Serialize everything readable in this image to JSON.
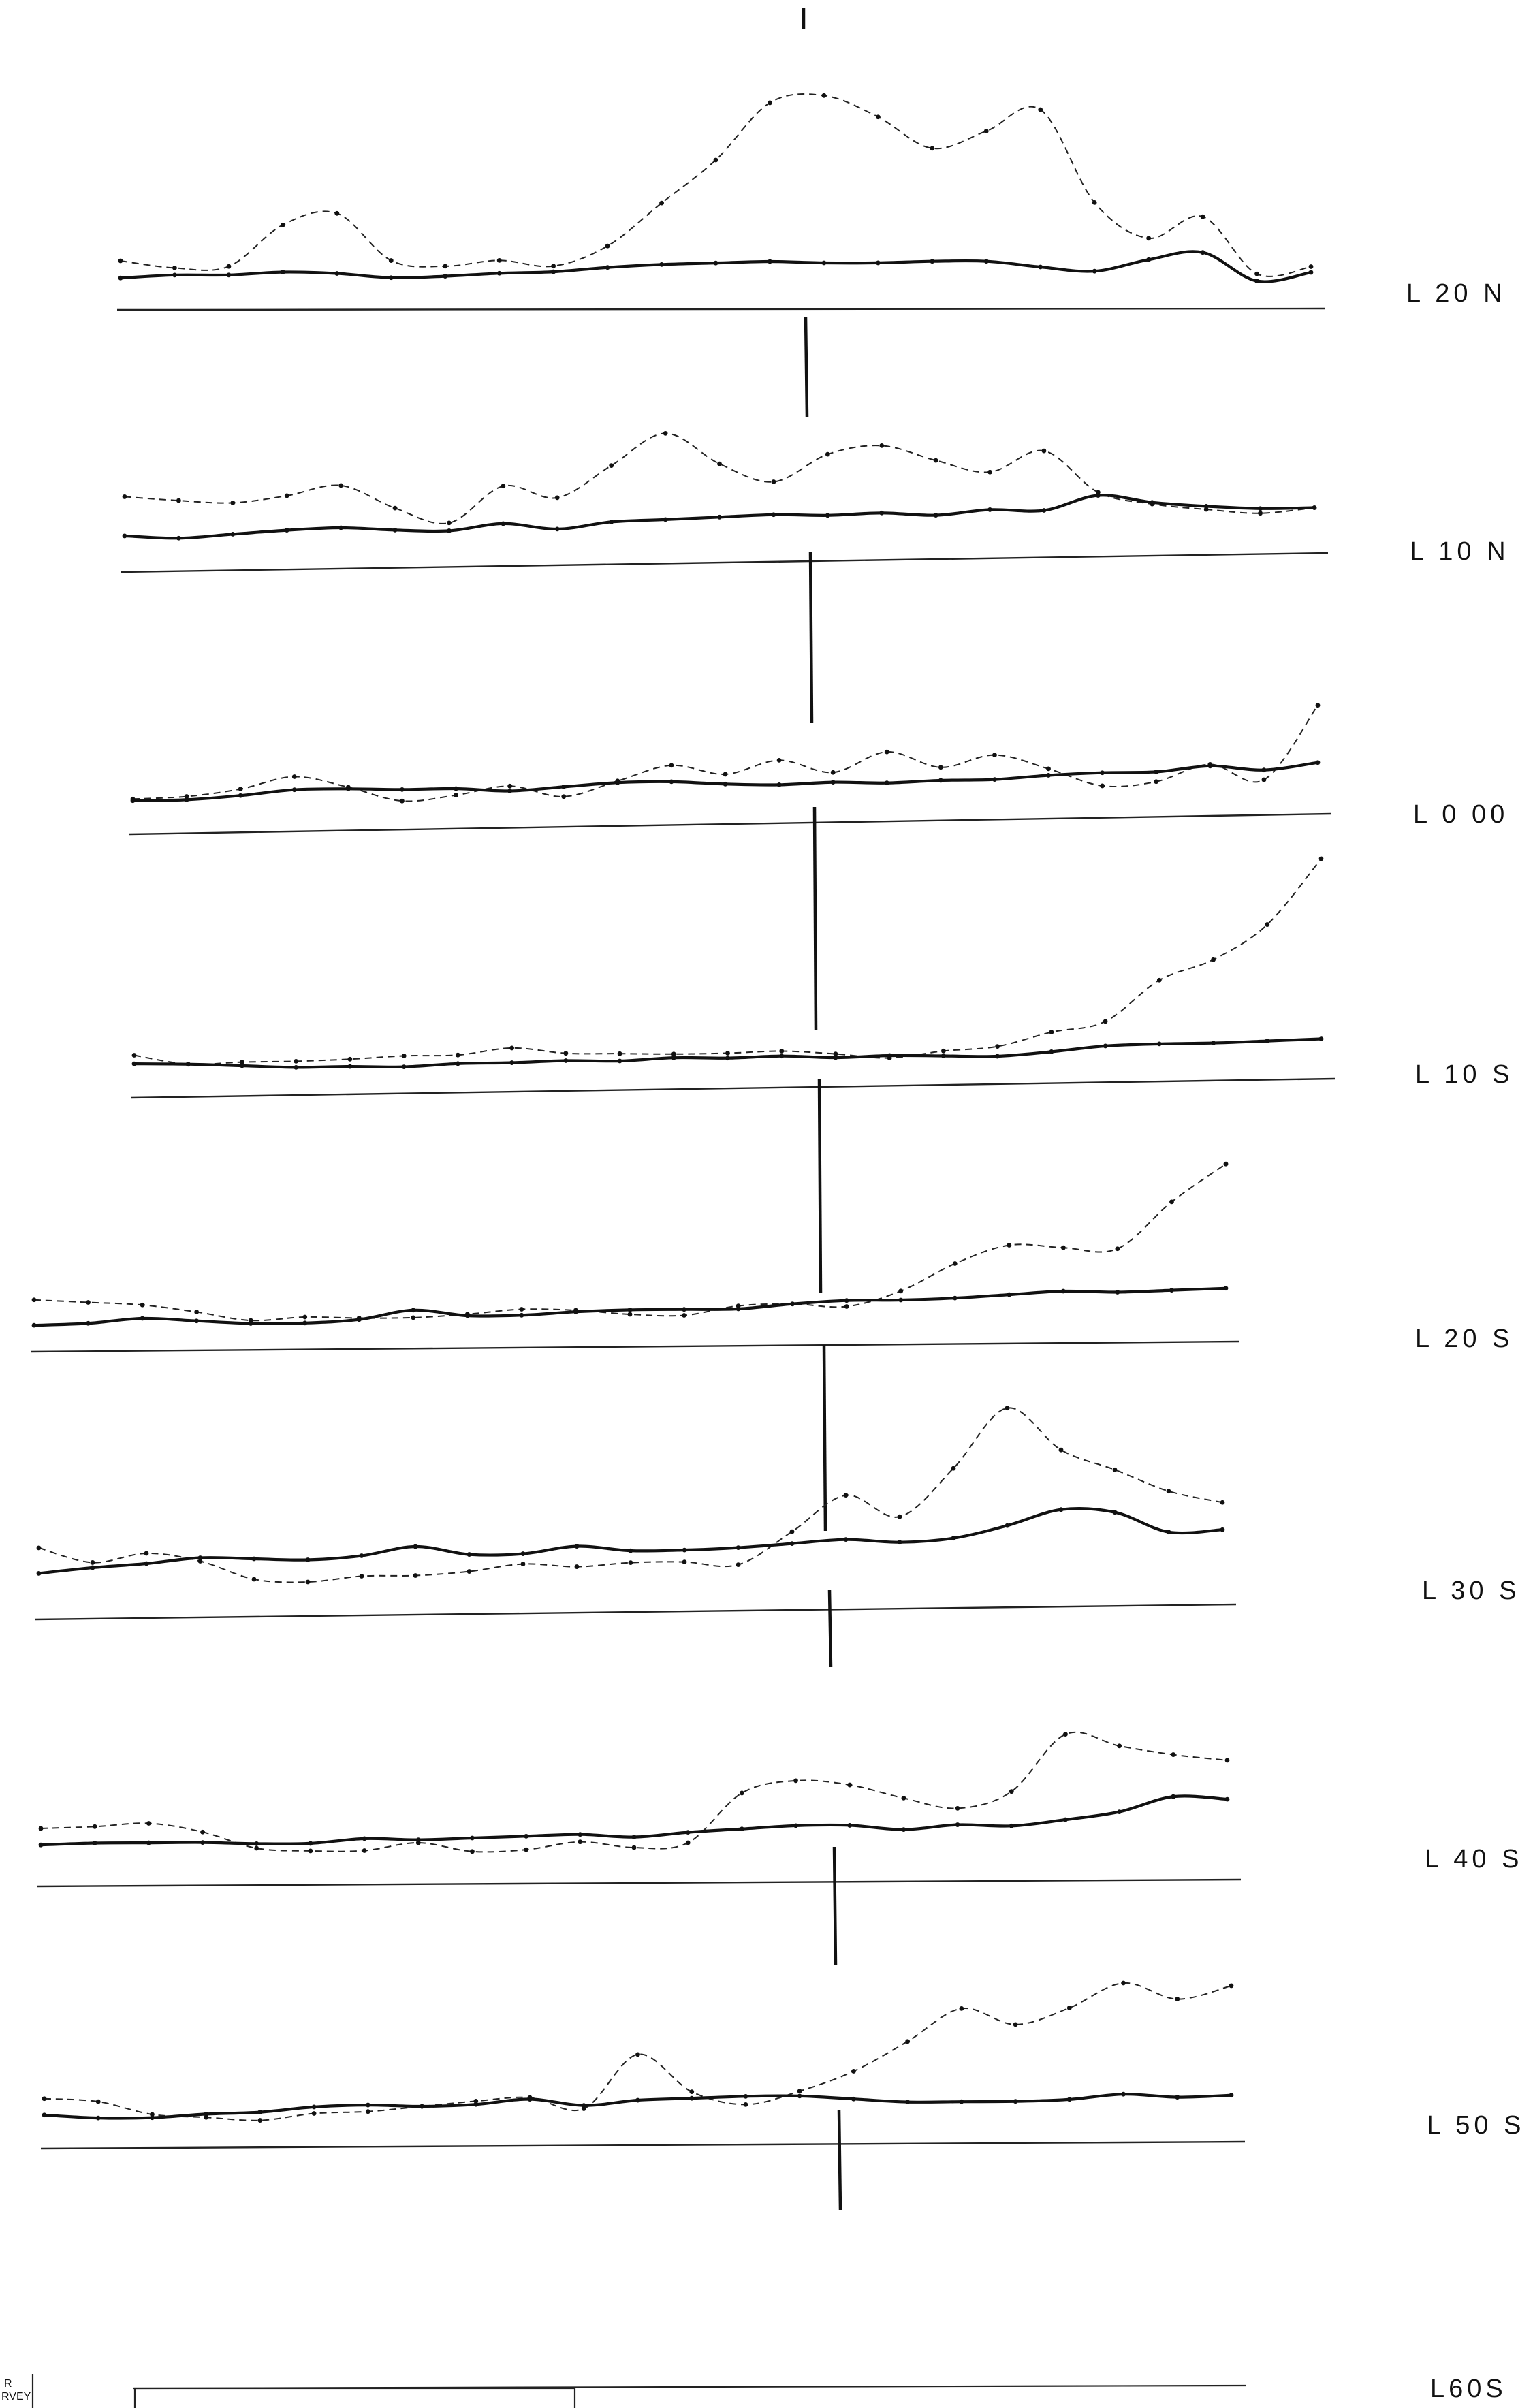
{
  "chart_data": {
    "type": "line",
    "title": "",
    "xlabel": "",
    "ylabel": "",
    "grid": false,
    "legend": "none",
    "x": [
      0,
      1,
      2,
      3,
      4,
      5,
      6,
      7,
      8,
      9,
      10,
      11,
      12,
      13,
      14,
      15,
      16,
      17,
      18,
      19,
      20,
      21,
      22
    ],
    "profiles": [
      {
        "label": "L 20 N",
        "solid": [
          0.8,
          1.0,
          1.0,
          1.2,
          1.1,
          0.8,
          0.9,
          1.1,
          1.2,
          1.5,
          1.7,
          1.8,
          1.9,
          1.8,
          1.8,
          1.9,
          1.9,
          1.5,
          1.2,
          2.0,
          2.5,
          0.5,
          1.1
        ],
        "dashed": [
          2.0,
          1.5,
          1.6,
          4.5,
          5.3,
          2.0,
          1.6,
          2.0,
          1.6,
          3.0,
          6.0,
          9.0,
          13.0,
          13.5,
          12.0,
          9.8,
          11.0,
          12.5,
          6.0,
          3.5,
          5.0,
          1.0,
          1.5
        ]
      },
      {
        "label": "L 10 N",
        "solid": [
          1.0,
          0.8,
          1.0,
          1.2,
          1.3,
          1.1,
          1.0,
          1.4,
          1.0,
          1.4,
          1.5,
          1.6,
          1.7,
          1.6,
          1.7,
          1.5,
          1.8,
          1.7,
          2.6,
          2.1,
          1.8,
          1.6,
          1.6
        ],
        "dashed": [
          3.5,
          3.2,
          3.0,
          3.4,
          4.0,
          2.5,
          1.5,
          3.8,
          3.0,
          5.0,
          7.0,
          5.0,
          3.8,
          5.5,
          6.0,
          5.0,
          4.2,
          5.5,
          2.8,
          2.0,
          1.6,
          1.3,
          1.6
        ]
      },
      {
        "label": "L 0 00",
        "solid": [
          0.8,
          0.8,
          1.0,
          1.3,
          1.3,
          1.2,
          1.2,
          1.0,
          1.2,
          1.4,
          1.4,
          1.2,
          1.1,
          1.2,
          1.1,
          1.2,
          1.2,
          1.4,
          1.5,
          1.5,
          1.8,
          1.5,
          1.9
        ],
        "dashed": [
          0.9,
          1.0,
          1.4,
          2.1,
          1.4,
          0.5,
          0.8,
          1.3,
          0.6,
          1.5,
          2.4,
          1.8,
          2.6,
          1.8,
          3.0,
          2.0,
          2.7,
          1.8,
          0.7,
          0.9,
          1.9,
          0.9,
          5.4
        ]
      },
      {
        "label": "L 10 S",
        "solid": [
          1.1,
          1.0,
          0.8,
          0.6,
          0.6,
          0.5,
          0.7,
          0.7,
          0.8,
          0.7,
          0.9,
          0.8,
          0.9,
          0.7,
          0.8,
          0.7,
          0.6,
          0.9,
          1.3,
          1.4,
          1.4,
          1.5,
          1.6
        ],
        "dashed": [
          1.8,
          1.0,
          1.1,
          1.1,
          1.2,
          1.4,
          1.4,
          1.9,
          1.4,
          1.3,
          1.2,
          1.2,
          1.3,
          1.0,
          0.6,
          1.1,
          1.4,
          2.5,
          3.3,
          6.6,
          8.2,
          11.0,
          16.3
        ]
      },
      {
        "label": "L 20 S",
        "solid": [
          0.4,
          0.5,
          0.8,
          0.6,
          0.4,
          0.4,
          0.6,
          1.2,
          0.8,
          0.8,
          1.0,
          1.1,
          1.1,
          1.1,
          1.4,
          1.6,
          1.6,
          1.7,
          1.9,
          2.1,
          2.0,
          2.1,
          2.2
        ],
        "dashed": [
          2.1,
          1.9,
          1.7,
          1.2,
          0.6,
          0.8,
          0.7,
          0.7,
          0.9,
          1.2,
          1.1,
          0.8,
          0.7,
          1.3,
          1.4,
          1.2,
          2.2,
          4.0,
          5.2,
          5.0,
          4.9,
          8.0,
          10.5
        ]
      },
      {
        "label": "L 30 S",
        "solid": [
          1.5,
          1.8,
          2.0,
          2.3,
          2.2,
          2.1,
          2.3,
          2.8,
          2.3,
          2.3,
          2.7,
          2.4,
          2.4,
          2.5,
          2.7,
          2.9,
          2.7,
          2.9,
          3.6,
          4.5,
          4.3,
          3.1,
          3.2
        ],
        "dashed": [
          3.0,
          2.1,
          2.6,
          2.1,
          1.0,
          0.8,
          1.1,
          1.1,
          1.3,
          1.7,
          1.5,
          1.7,
          1.7,
          1.5,
          3.4,
          5.5,
          4.2,
          7.0,
          10.5,
          8.0,
          6.8,
          5.5,
          4.8
        ]
      },
      {
        "label": "L 40 S",
        "solid": [
          1.4,
          1.5,
          1.5,
          1.5,
          1.4,
          1.4,
          1.7,
          1.6,
          1.7,
          1.8,
          1.9,
          1.7,
          2.0,
          2.2,
          2.4,
          2.4,
          2.1,
          2.4,
          2.3,
          2.7,
          3.2,
          4.2,
          4.0
        ],
        "dashed": [
          2.5,
          2.6,
          2.8,
          2.2,
          1.1,
          0.9,
          0.9,
          1.4,
          0.8,
          0.9,
          1.4,
          1.0,
          1.3,
          4.6,
          5.4,
          5.1,
          4.2,
          3.5,
          4.6,
          8.4,
          7.6,
          7.0,
          6.6
        ]
      },
      {
        "label": "L 50 S",
        "solid": [
          0.8,
          0.6,
          0.6,
          0.8,
          0.9,
          1.2,
          1.3,
          1.2,
          1.3,
          1.6,
          1.2,
          1.5,
          1.6,
          1.7,
          1.7,
          1.5,
          1.3,
          1.3,
          1.3,
          1.4,
          1.7,
          1.5,
          1.6
        ],
        "dashed": [
          1.8,
          1.6,
          0.8,
          0.6,
          0.4,
          0.8,
          0.9,
          1.2,
          1.5,
          1.7,
          1.0,
          4.3,
          2.0,
          1.2,
          2.0,
          3.2,
          5.0,
          7.0,
          6.0,
          7.0,
          8.5,
          7.5,
          8.3
        ]
      }
    ],
    "partial_profile": {
      "label": "L60S"
    },
    "edge_text": [
      "R",
      "RVEY"
    ]
  }
}
